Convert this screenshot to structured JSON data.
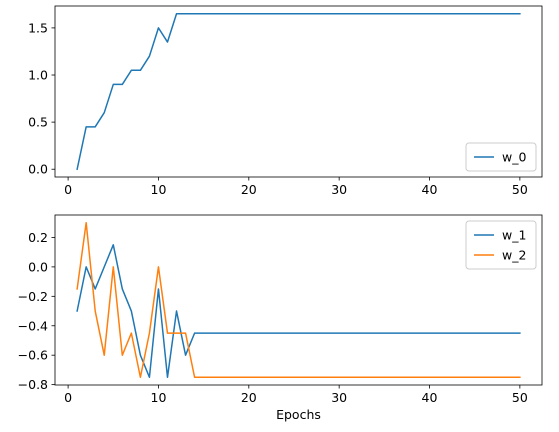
{
  "chart_data": [
    {
      "type": "line",
      "xlabel": "",
      "ylabel": "",
      "xlim": [
        -1.45,
        52.45
      ],
      "ylim": [
        -0.0825,
        1.7325
      ],
      "xticks": [
        0,
        10,
        20,
        30,
        40,
        50
      ],
      "yticks": [
        0.0,
        0.5,
        1.0,
        1.5
      ],
      "xtick_labels": [
        "0",
        "10",
        "20",
        "30",
        "40",
        "50"
      ],
      "ytick_labels": [
        "0.0",
        "0.5",
        "1.0",
        "1.5"
      ],
      "legend_position": "lower-right",
      "grid": false,
      "series": [
        {
          "name": "w_0",
          "color": "#1f77b4",
          "x": [
            1,
            2,
            3,
            4,
            5,
            6,
            7,
            8,
            9,
            10,
            11,
            12,
            13,
            14,
            15,
            16,
            17,
            18,
            19,
            20,
            21,
            22,
            23,
            24,
            25,
            26,
            27,
            28,
            29,
            30,
            31,
            32,
            33,
            34,
            35,
            36,
            37,
            38,
            39,
            40,
            41,
            42,
            43,
            44,
            45,
            46,
            47,
            48,
            49,
            50
          ],
          "values": [
            0.0,
            0.45,
            0.45,
            0.6,
            0.9,
            0.9,
            1.05,
            1.05,
            1.2,
            1.5,
            1.35,
            1.65,
            1.65,
            1.65,
            1.65,
            1.65,
            1.65,
            1.65,
            1.65,
            1.65,
            1.65,
            1.65,
            1.65,
            1.65,
            1.65,
            1.65,
            1.65,
            1.65,
            1.65,
            1.65,
            1.65,
            1.65,
            1.65,
            1.65,
            1.65,
            1.65,
            1.65,
            1.65,
            1.65,
            1.65,
            1.65,
            1.65,
            1.65,
            1.65,
            1.65,
            1.65,
            1.65,
            1.65,
            1.65,
            1.65
          ]
        }
      ]
    },
    {
      "type": "line",
      "xlabel": "Epochs",
      "ylabel": "",
      "xlim": [
        -1.45,
        52.45
      ],
      "ylim": [
        -0.8025,
        0.3525
      ],
      "xticks": [
        0,
        10,
        20,
        30,
        40,
        50
      ],
      "yticks": [
        -0.8,
        -0.6,
        -0.4,
        -0.2,
        0.0,
        0.2
      ],
      "xtick_labels": [
        "0",
        "10",
        "20",
        "30",
        "40",
        "50"
      ],
      "ytick_labels": [
        "−0.8",
        "−0.6",
        "−0.4",
        "−0.2",
        "0.0",
        "0.2"
      ],
      "legend_position": "upper-right",
      "grid": false,
      "series": [
        {
          "name": "w_1",
          "color": "#1f77b4",
          "x": [
            1,
            2,
            3,
            4,
            5,
            6,
            7,
            8,
            9,
            10,
            11,
            12,
            13,
            14,
            15,
            16,
            17,
            18,
            19,
            20,
            21,
            22,
            23,
            24,
            25,
            26,
            27,
            28,
            29,
            30,
            31,
            32,
            33,
            34,
            35,
            36,
            37,
            38,
            39,
            40,
            41,
            42,
            43,
            44,
            45,
            46,
            47,
            48,
            49,
            50
          ],
          "values": [
            -0.3,
            0.0,
            -0.15,
            0.0,
            0.15,
            -0.15,
            -0.3,
            -0.6,
            -0.75,
            -0.15,
            -0.75,
            -0.3,
            -0.6,
            -0.45,
            -0.45,
            -0.45,
            -0.45,
            -0.45,
            -0.45,
            -0.45,
            -0.45,
            -0.45,
            -0.45,
            -0.45,
            -0.45,
            -0.45,
            -0.45,
            -0.45,
            -0.45,
            -0.45,
            -0.45,
            -0.45,
            -0.45,
            -0.45,
            -0.45,
            -0.45,
            -0.45,
            -0.45,
            -0.45,
            -0.45,
            -0.45,
            -0.45,
            -0.45,
            -0.45,
            -0.45,
            -0.45,
            -0.45,
            -0.45,
            -0.45,
            -0.45
          ]
        },
        {
          "name": "w_2",
          "color": "#ff7f0e",
          "x": [
            1,
            2,
            3,
            4,
            5,
            6,
            7,
            8,
            9,
            10,
            11,
            12,
            13,
            14,
            15,
            16,
            17,
            18,
            19,
            20,
            21,
            22,
            23,
            24,
            25,
            26,
            27,
            28,
            29,
            30,
            31,
            32,
            33,
            34,
            35,
            36,
            37,
            38,
            39,
            40,
            41,
            42,
            43,
            44,
            45,
            46,
            47,
            48,
            49,
            50
          ],
          "values": [
            -0.15,
            0.3,
            -0.3,
            -0.6,
            0.0,
            -0.6,
            -0.45,
            -0.75,
            -0.45,
            0.0,
            -0.45,
            -0.45,
            -0.45,
            -0.75,
            -0.75,
            -0.75,
            -0.75,
            -0.75,
            -0.75,
            -0.75,
            -0.75,
            -0.75,
            -0.75,
            -0.75,
            -0.75,
            -0.75,
            -0.75,
            -0.75,
            -0.75,
            -0.75,
            -0.75,
            -0.75,
            -0.75,
            -0.75,
            -0.75,
            -0.75,
            -0.75,
            -0.75,
            -0.75,
            -0.75,
            -0.75,
            -0.75,
            -0.75,
            -0.75,
            -0.75,
            -0.75,
            -0.75,
            -0.75,
            -0.75,
            -0.75
          ]
        }
      ]
    }
  ]
}
